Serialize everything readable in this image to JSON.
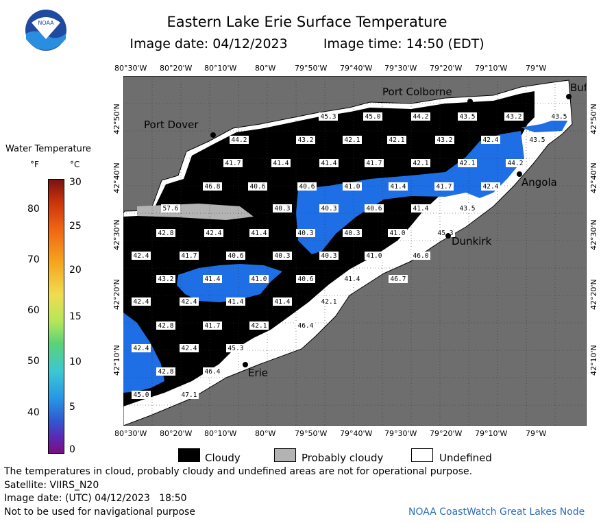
{
  "header": {
    "title": "Eastern Lake Erie Surface Temperature",
    "image_date": "Image date: 04/12/2023",
    "image_time": "Image time: 14:50 (EDT)"
  },
  "logo": {
    "text": "NOAA"
  },
  "colorbar": {
    "title": "Water Temperature",
    "unit_f": "°F",
    "unit_c": "°C",
    "f_ticks": [
      "80",
      "70",
      "60",
      "50",
      "40"
    ],
    "c_ticks": [
      "30",
      "25",
      "20",
      "15",
      "10",
      "5",
      "0"
    ]
  },
  "axes": {
    "lon_ticks": [
      "80°30'W",
      "80°20'W",
      "80°10'W",
      "80°W",
      "79°50'W",
      "79°40'W",
      "79°30'W",
      "79°20'W",
      "79°10'W",
      "79°W"
    ],
    "lat_ticks": [
      "42°50'N",
      "42°40'N",
      "42°30'N",
      "42°20'N",
      "42°10'N"
    ]
  },
  "cities": [
    "Port Colborne",
    "Buf",
    "Port Dover",
    "Angola",
    "Dunkirk",
    "Erie"
  ],
  "temperature_labels": [
    {
      "v": "45.3"
    },
    {
      "v": "45.0"
    },
    {
      "v": "44.2"
    },
    {
      "v": "43.5"
    },
    {
      "v": "43.2"
    },
    {
      "v": "43.5"
    },
    {
      "v": "44.2"
    },
    {
      "v": "43.2"
    },
    {
      "v": "42.1"
    },
    {
      "v": "42.1"
    },
    {
      "v": "43.2"
    },
    {
      "v": "42.4"
    },
    {
      "v": "43.5"
    },
    {
      "v": "41.7"
    },
    {
      "v": "41.4"
    },
    {
      "v": "41.4"
    },
    {
      "v": "41.7"
    },
    {
      "v": "42.1"
    },
    {
      "v": "42.1"
    },
    {
      "v": "44.2"
    },
    {
      "v": "46.8"
    },
    {
      "v": "40.6"
    },
    {
      "v": "40.6"
    },
    {
      "v": "41.0"
    },
    {
      "v": "41.4"
    },
    {
      "v": "41.7"
    },
    {
      "v": "42.4"
    },
    {
      "v": "57.6"
    },
    {
      "v": "40.3"
    },
    {
      "v": "40.3"
    },
    {
      "v": "40.6"
    },
    {
      "v": "41.4"
    },
    {
      "v": "43.5"
    },
    {
      "v": "42.8"
    },
    {
      "v": "42.4"
    },
    {
      "v": "41.4"
    },
    {
      "v": "40.3"
    },
    {
      "v": "40.3"
    },
    {
      "v": "41.0"
    },
    {
      "v": "45.3"
    },
    {
      "v": "42.4"
    },
    {
      "v": "41.7"
    },
    {
      "v": "40.6"
    },
    {
      "v": "40.3"
    },
    {
      "v": "40.3"
    },
    {
      "v": "41.0"
    },
    {
      "v": "46.0"
    },
    {
      "v": "43.2"
    },
    {
      "v": "41.4"
    },
    {
      "v": "41.0"
    },
    {
      "v": "40.6"
    },
    {
      "v": "41.4"
    },
    {
      "v": "46.7"
    },
    {
      "v": "42.4"
    },
    {
      "v": "42.4"
    },
    {
      "v": "41.4"
    },
    {
      "v": "41.4"
    },
    {
      "v": "42.1"
    },
    {
      "v": "42.8"
    },
    {
      "v": "41.7"
    },
    {
      "v": "42.1"
    },
    {
      "v": "46.4"
    },
    {
      "v": "42.4"
    },
    {
      "v": "42.4"
    },
    {
      "v": "45.3"
    },
    {
      "v": "42.8"
    },
    {
      "v": "46.4"
    },
    {
      "v": "45.0"
    },
    {
      "v": "47.1"
    }
  ],
  "legend": {
    "cloudy": "Cloudy",
    "probably_cloudy": "Probably cloudy",
    "undefined": "Undefined"
  },
  "footer": {
    "disclaimer": "The temperatures in cloud, probably cloudy and undefined areas are not for operational purpose.",
    "satellite": "Satellite: VIIRS_N20",
    "utc_date": "Image date: (UTC) 04/12/2023   18:50",
    "nav_warning": "Not to be used for navigational purpose",
    "credit": "NOAA CoastWatch Great Lakes Node"
  },
  "colors": {
    "land": "#6e6e6e",
    "cloud": "#000000",
    "probably_cloud": "#b3b3b3",
    "undefined": "#ffffff",
    "water_cold": "#1e6fe6"
  }
}
